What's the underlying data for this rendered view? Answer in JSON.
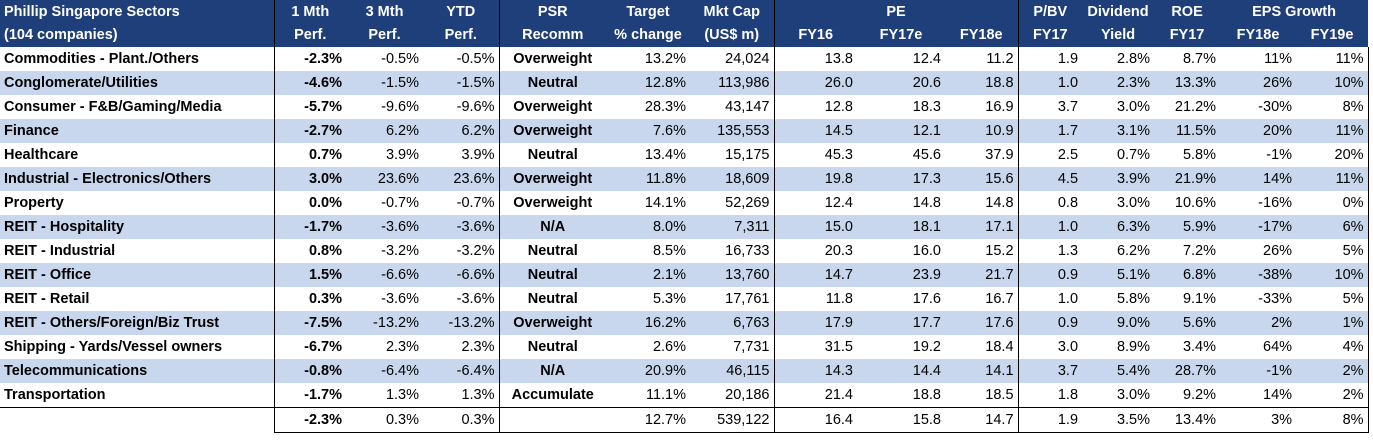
{
  "header": {
    "r1": [
      "Phillip Singapore Sectors",
      "1 Mth",
      "3 Mth",
      "YTD",
      "PSR",
      "Target",
      "Mkt Cap",
      "PE",
      "P/BV",
      "Dividend",
      "ROE",
      "EPS Growth"
    ],
    "r2": [
      "(104 companies)",
      "Perf.",
      "Perf.",
      "Perf.",
      "Recomm",
      "% change",
      "(US$ m)",
      "FY16",
      "FY17e",
      "FY18e",
      "FY17",
      "Yield",
      "FY17",
      "FY18e",
      "FY19e"
    ]
  },
  "rows": [
    [
      "Commodities - Plant./Others",
      "-2.3%",
      "-0.5%",
      "-0.5%",
      "Overweight",
      "13.2%",
      "24,024",
      "13.8",
      "12.4",
      "11.2",
      "1.9",
      "2.8%",
      "8.7%",
      "11%",
      "11%"
    ],
    [
      "Conglomerate/Utilities",
      "-4.6%",
      "-1.5%",
      "-1.5%",
      "Neutral",
      "12.8%",
      "113,986",
      "26.0",
      "20.6",
      "18.8",
      "1.0",
      "2.3%",
      "13.3%",
      "26%",
      "10%"
    ],
    [
      "Consumer - F&B/Gaming/Media",
      "-5.7%",
      "-9.6%",
      "-9.6%",
      "Overweight",
      "28.3%",
      "43,147",
      "12.8",
      "18.3",
      "16.9",
      "3.7",
      "3.0%",
      "21.2%",
      "-30%",
      "8%"
    ],
    [
      "Finance",
      "-2.7%",
      "6.2%",
      "6.2%",
      "Overweight",
      "7.6%",
      "135,553",
      "14.5",
      "12.1",
      "10.9",
      "1.7",
      "3.1%",
      "11.5%",
      "20%",
      "11%"
    ],
    [
      "Healthcare",
      "0.7%",
      "3.9%",
      "3.9%",
      "Neutral",
      "13.4%",
      "15,175",
      "45.3",
      "45.6",
      "37.9",
      "2.5",
      "0.7%",
      "5.8%",
      "-1%",
      "20%"
    ],
    [
      "Industrial - Electronics/Others",
      "3.0%",
      "23.6%",
      "23.6%",
      "Overweight",
      "11.8%",
      "18,609",
      "19.8",
      "17.3",
      "15.6",
      "4.5",
      "3.9%",
      "21.9%",
      "14%",
      "11%"
    ],
    [
      "Property",
      "0.0%",
      "-0.7%",
      "-0.7%",
      "Overweight",
      "14.1%",
      "52,269",
      "12.4",
      "14.8",
      "14.8",
      "0.8",
      "3.0%",
      "10.6%",
      "-16%",
      "0%"
    ],
    [
      "REIT - Hospitality",
      "-1.7%",
      "-3.6%",
      "-3.6%",
      "N/A",
      "8.0%",
      "7,311",
      "15.0",
      "18.1",
      "17.1",
      "1.0",
      "6.3%",
      "5.9%",
      "-17%",
      "6%"
    ],
    [
      "REIT - Industrial",
      "0.8%",
      "-3.2%",
      "-3.2%",
      "Neutral",
      "8.5%",
      "16,733",
      "20.3",
      "16.0",
      "15.2",
      "1.3",
      "6.2%",
      "7.2%",
      "26%",
      "5%"
    ],
    [
      "REIT - Office",
      "1.5%",
      "-6.6%",
      "-6.6%",
      "Neutral",
      "2.1%",
      "13,760",
      "14.7",
      "23.9",
      "21.7",
      "0.9",
      "5.1%",
      "6.8%",
      "-38%",
      "10%"
    ],
    [
      "REIT - Retail",
      "0.3%",
      "-3.6%",
      "-3.6%",
      "Neutral",
      "5.3%",
      "17,761",
      "11.8",
      "17.6",
      "16.7",
      "1.0",
      "5.8%",
      "9.1%",
      "-33%",
      "5%"
    ],
    [
      "REIT - Others/Foreign/Biz Trust",
      "-7.5%",
      "-13.2%",
      "-13.2%",
      "Overweight",
      "16.2%",
      "6,763",
      "17.9",
      "17.7",
      "17.6",
      "0.9",
      "9.0%",
      "5.6%",
      "2%",
      "1%"
    ],
    [
      "Shipping - Yards/Vessel owners",
      "-6.7%",
      "2.3%",
      "2.3%",
      "Neutral",
      "2.6%",
      "7,731",
      "31.5",
      "19.2",
      "18.4",
      "3.0",
      "8.9%",
      "3.4%",
      "64%",
      "4%"
    ],
    [
      "Telecommunications",
      "-0.8%",
      "-6.4%",
      "-6.4%",
      "N/A",
      "20.9%",
      "46,115",
      "14.3",
      "14.4",
      "14.1",
      "3.7",
      "5.4%",
      "28.7%",
      "-1%",
      "2%"
    ],
    [
      "Transportation",
      "-1.7%",
      "1.3%",
      "1.3%",
      "Accumulate",
      "11.1%",
      "20,186",
      "21.4",
      "18.8",
      "18.5",
      "1.8",
      "3.0%",
      "9.2%",
      "14%",
      "2%"
    ]
  ],
  "total": [
    "",
    "-2.3%",
    "0.3%",
    "0.3%",
    "",
    "12.7%",
    "539,122",
    "16.4",
    "15.8",
    "14.7",
    "1.9",
    "3.5%",
    "13.4%",
    "3%",
    "8%"
  ]
}
